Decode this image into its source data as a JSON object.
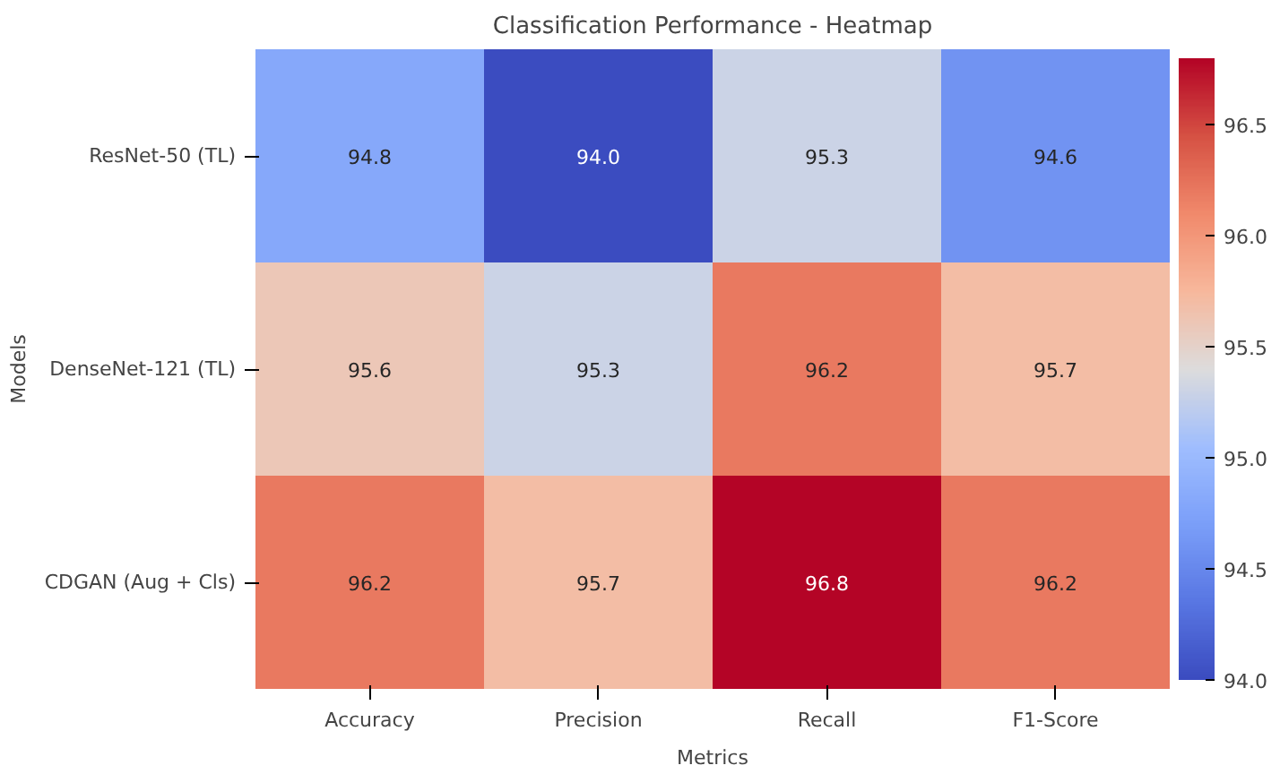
{
  "chart_data": {
    "type": "heatmap",
    "title": "Classification Performance - Heatmap",
    "xlabel": "Metrics",
    "ylabel": "Models",
    "categories": [
      "Accuracy",
      "Precision",
      "Recall",
      "F1-Score"
    ],
    "y_categories": [
      "ResNet-50 (TL)",
      "DenseNet-121 (TL)",
      "CDGAN (Aug + Cls)"
    ],
    "cells": [
      [
        94.8,
        94.0,
        95.3,
        94.6
      ],
      [
        95.6,
        95.3,
        96.2,
        95.7
      ],
      [
        96.2,
        95.7,
        96.8,
        96.2
      ]
    ],
    "cell_labels": [
      [
        "94.8",
        "94.0",
        "95.3",
        "94.6"
      ],
      [
        "95.6",
        "95.3",
        "96.2",
        "95.7"
      ],
      [
        "96.2",
        "95.7",
        "96.8",
        "96.2"
      ]
    ],
    "data_labels": true,
    "clim": [
      94.0,
      96.8
    ],
    "cticks": [
      {
        "value": 94.0,
        "label": "94.0"
      },
      {
        "value": 94.5,
        "label": "94.5"
      },
      {
        "value": 95.0,
        "label": "95.0"
      },
      {
        "value": 95.5,
        "label": "95.5"
      },
      {
        "value": 96.0,
        "label": "96.0"
      },
      {
        "value": 96.5,
        "label": "96.5"
      }
    ]
  }
}
